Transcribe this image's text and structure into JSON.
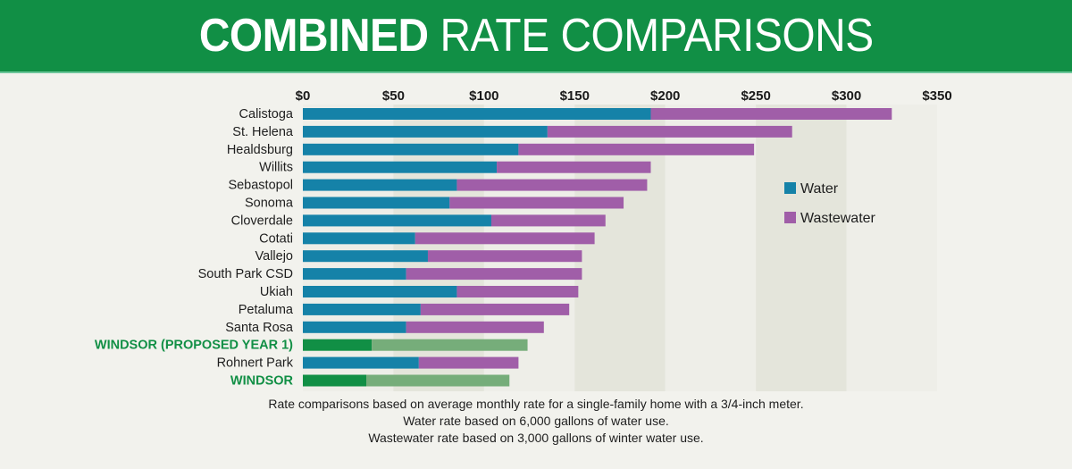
{
  "header": {
    "title_bold": "COMBINED",
    "title_light": "RATE COMPARISONS"
  },
  "notes": [
    "Rate comparisons based on average monthly rate for a single-family home with a 3/4-inch meter.",
    "Water rate based on 6,000 gallons of water use.",
    "Wastewater rate based on  3,000 gallons of winter water use."
  ],
  "colors": {
    "water": "#1582a8",
    "wastewater": "#a05ea8",
    "highlight_water": "#118f45",
    "highlight_wastewater": "#76ad7a",
    "header": "#118f45"
  },
  "chart_data": {
    "type": "bar",
    "orientation": "horizontal",
    "stacked": true,
    "title": "COMBINED RATE COMPARISONS",
    "xlabel": "",
    "ylabel": "",
    "xlim": [
      0,
      350
    ],
    "x_ticks": [
      0,
      50,
      100,
      150,
      200,
      250,
      300,
      350
    ],
    "x_tick_labels": [
      "$0",
      "$50",
      "$100",
      "$150",
      "$200",
      "$250",
      "$300",
      "$350"
    ],
    "grid": "alternating bands",
    "legend_position": "right",
    "categories": [
      "Calistoga",
      "St. Helena",
      "Healdsburg",
      "Willits",
      "Sebastopol",
      "Sonoma",
      "Cloverdale",
      "Cotati",
      "Vallejo",
      "South Park CSD",
      "Ukiah",
      "Petaluma",
      "Santa Rosa",
      "WINDSOR (PROPOSED YEAR 1)",
      "Rohnert Park",
      "WINDSOR"
    ],
    "highlighted": [
      false,
      false,
      false,
      false,
      false,
      false,
      false,
      false,
      false,
      false,
      false,
      false,
      false,
      true,
      false,
      true
    ],
    "series": [
      {
        "name": "Water",
        "values": [
          192,
          135,
          119,
          107,
          85,
          81,
          104,
          62,
          69,
          57,
          85,
          65,
          57,
          38,
          64,
          35
        ]
      },
      {
        "name": "Wastewater",
        "values": [
          133,
          135,
          130,
          85,
          105,
          96,
          63,
          99,
          85,
          97,
          67,
          82,
          76,
          86,
          55,
          79
        ]
      }
    ]
  }
}
